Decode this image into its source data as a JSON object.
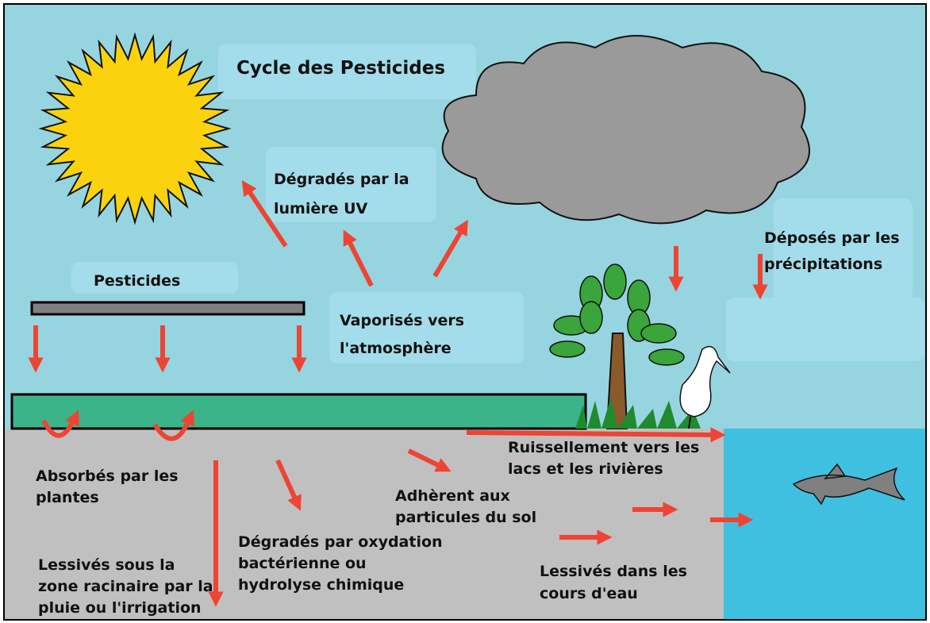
{
  "title": "Cycle des Pesticides",
  "labels": [
    {
      "lines": [
        "Dégradés par la",
        "lumière UV"
      ]
    },
    {
      "lines": [
        "Pesticides"
      ]
    },
    {
      "lines": [
        "Vaporisés vers",
        "l'atmosphère"
      ]
    },
    {
      "lines": [
        "Déposés par les",
        "précipitations"
      ]
    },
    {
      "lines": [
        "Absorbés par les",
        "plantes"
      ]
    },
    {
      "lines": [
        "Lessivés sous la",
        "zone racinaire par la",
        "pluie ou l'irrigation"
      ]
    },
    {
      "lines": [
        "Dégradés par oxydation",
        "bactérienne ou",
        "hydrolyse chimique"
      ]
    },
    {
      "lines": [
        "Adhèrent aux",
        "particules du sol"
      ]
    },
    {
      "lines": [
        "Ruissellement vers les",
        "lacs et les rivières"
      ]
    },
    {
      "lines": [
        "Lessivés dans les",
        "cours d'eau"
      ]
    }
  ]
}
